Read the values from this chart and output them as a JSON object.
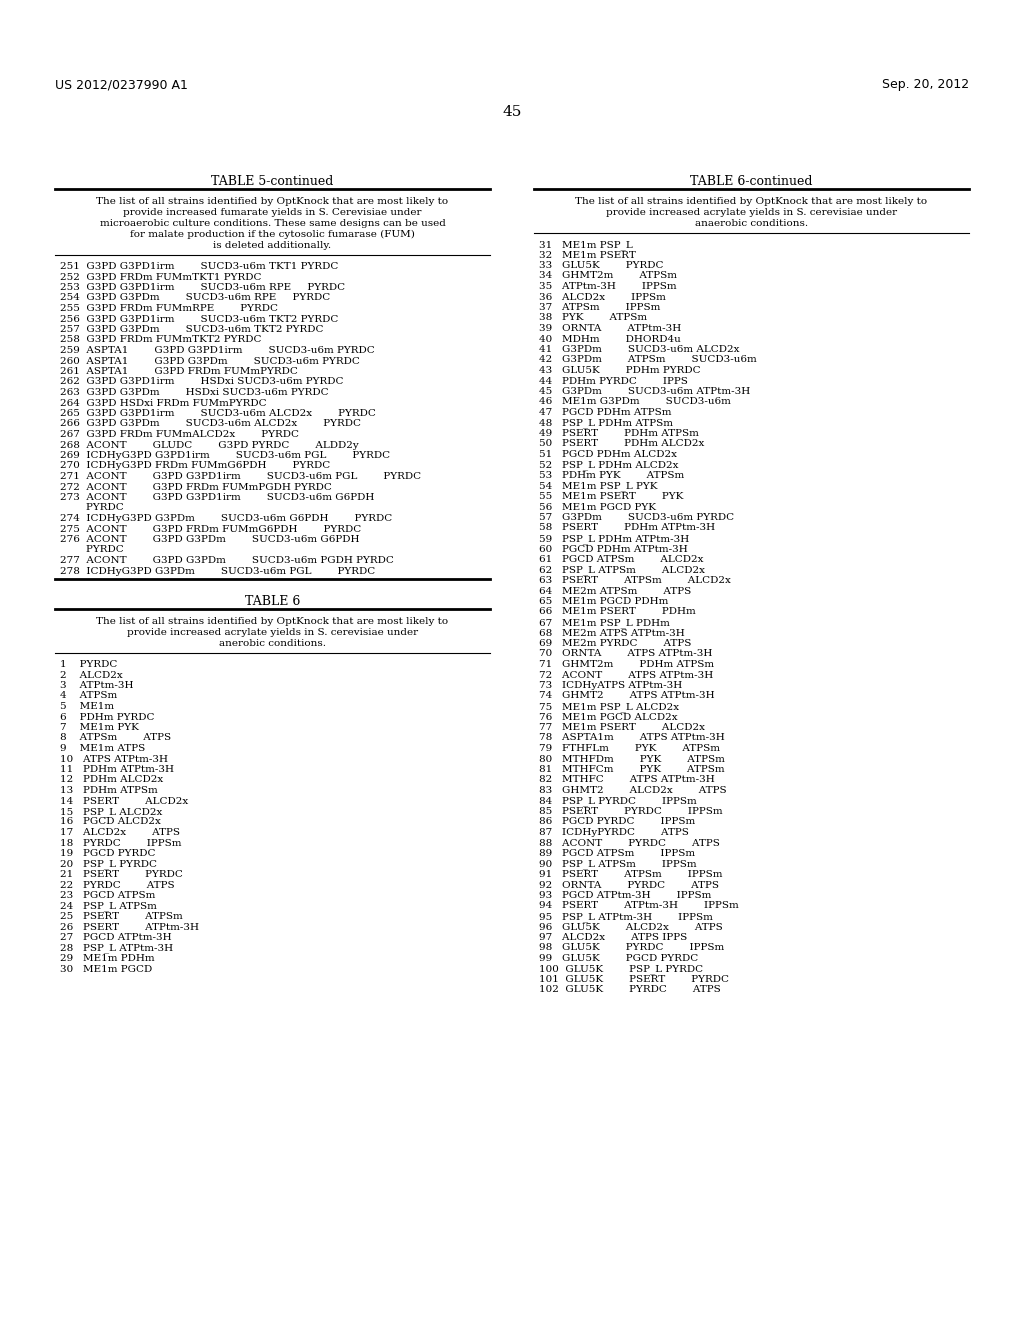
{
  "header_left": "US 2012/0237990 A1",
  "header_right": "Sep. 20, 2012",
  "page_number": "45",
  "table5_continued_title": "TABLE 5-continued",
  "table5_description": "The list of all strains identified by OptKnock that are most likely to\nprovide increased fumarate yields in S. Cerevisiae under\nmicroaerobic culture conditions. These same designs can be used\nfor malate production if the cytosolic fumarase (FUM)\nis deleted additionally.",
  "table5_rows": [
    "251  G3PD G3PD1irm        SUCD3-u6m TKT1 PYRDC",
    "252  G3PD FRDm FUMmTKT1 PYRDC",
    "253  G3PD G3PD1irm        SUCD3-u6m RPE     PYRDC",
    "254  G3PD G3PDm        SUCD3-u6m RPE     PYRDC",
    "255  G3PD FRDm FUMmRPE        PYRDC",
    "256  G3PD G3PD1irm        SUCD3-u6m TKT2 PYRDC",
    "257  G3PD G3PDm        SUCD3-u6m TKT2 PYRDC",
    "258  G3PD FRDm FUMmTKT2 PYRDC",
    "259  ASPTA1        G3PD G3PD1irm        SUCD3-u6m PYRDC",
    "260  ASPTA1        G3PD G3PDm        SUCD3-u6m PYRDC",
    "261  ASPTA1        G3PD FRDm FUMmPYRDC",
    "262  G3PD G3PD1irm        HSDxi SUCD3-u6m PYRDC",
    "263  G3PD G3PDm        HSDxi SUCD3-u6m PYRDC",
    "264  G3PD HSDxi FRDm FUMmPYRDC",
    "265  G3PD G3PD1irm        SUCD3-u6m ALCD2x        PYRDC",
    "266  G3PD G3PDm        SUCD3-u6m ALCD2x        PYRDC",
    "267  G3PD FRDm FUMmALCD2x        PYRDC",
    "268  ACONT        GLUDC        G3PD PYRDC        ALDD2y",
    "269  ICDHyG3PD G3PD1irm        SUCD3-u6m PGL        PYRDC",
    "270  ICDHyG3PD FRDm FUMmG6PDH        PYRDC",
    "271  ACONT        G3PD G3PD1irm        SUCD3-u6m PGL        PYRDC",
    "272  ACONT        G3PD FRDm FUMmPGDH PYRDC",
    "273  ACONT        G3PD G3PD1irm        SUCD3-u6m G6PDH",
    "        PYRDC",
    "274  ICDHyG3PD G3PDm        SUCD3-u6m G6PDH        PYRDC",
    "275  ACONT        G3PD FRDm FUMmG6PDH        PYRDC",
    "276  ACONT        G3PD G3PDm        SUCD3-u6m G6PDH",
    "        PYRDC",
    "277  ACONT        G3PD G3PDm        SUCD3-u6m PGDH PYRDC",
    "278  ICDHyG3PD G3PDm        SUCD3-u6m PGL        PYRDC"
  ],
  "table6_title": "TABLE 6",
  "table6_description": "The list of all strains identified by OptKnock that are most likely to\nprovide increased acrylate yields in S. cerevisiae under\nanerobic conditions.",
  "table6_rows_left": [
    "1    PYRDC",
    "2    ALCD2x",
    "3    ATPtm-3H",
    "4    ATPSm",
    "5    ME1m",
    "6    PDHm PYRDC",
    "7    ME1m PYK",
    "8    ATPSm        ATPS",
    "9    ME1m ATPS",
    "10   ATPS ATPtm-3H",
    "11   PDHm ATPtm-3H",
    "12   PDHm ALCD2x",
    "13   PDHm ATPSm",
    "14   PSERT        ALCD2x",
    "15   PSP_L ALCD2x",
    "16   PGCD ALCD2x",
    "17   ALCD2x        ATPS",
    "18   PYRDC        IPPSm",
    "19   PGCD PYRDC",
    "20   PSP_L PYRDC",
    "21   PSERT        PYRDC",
    "22   PYRDC        ATPS",
    "23   PGCD ATPSm",
    "24   PSP_L ATPSm",
    "25   PSERT        ATPSm",
    "26   PSERT        ATPtm-3H",
    "27   PGCD ATPtm-3H",
    "28   PSP_L ATPtm-3H",
    "29   ME1m PDHm",
    "30   ME1m PGCD"
  ],
  "table6_continued_title": "TABLE 6-continued",
  "table6_continued_description": "The list of all strains identified by OptKnock that are most likely to\nprovide increased acrylate yields in S. cerevisiae under\nanaerobic conditions.",
  "table6_rows_right": [
    "31   ME1m PSP_L",
    "32   ME1m PSERT",
    "33   GLU5K        PYRDC",
    "34   GHMT2m        ATPSm",
    "35   ATPtm-3H        IPPSm",
    "36   ALCD2x        IPPSm",
    "37   ATPSm        IPPSm",
    "38   PYK        ATPSm",
    "39   ORNTA        ATPtm-3H",
    "40   MDHm        DHORD4u",
    "41   G3PDm        SUCD3-u6m ALCD2x",
    "42   G3PDm        ATPSm        SUCD3-u6m",
    "43   GLU5K        PDHm PYRDC",
    "44   PDHm PYRDC        IPPS",
    "45   G3PDm        SUCD3-u6m ATPtm-3H",
    "46   ME1m G3PDm        SUCD3-u6m",
    "47   PGCD PDHm ATPSm",
    "48   PSP_L PDHm ATPSm",
    "49   PSERT        PDHm ATPSm",
    "50   PSERT        PDHm ALCD2x",
    "51   PGCD PDHm ALCD2x",
    "52   PSP_L PDHm ALCD2x",
    "53   PDHm PYK        ATPSm",
    "54   ME1m PSP_L PYK",
    "55   ME1m PSERT        PYK",
    "56   ME1m PGCD PYK",
    "57   G3PDm        SUCD3-u6m PYRDC",
    "58   PSERT        PDHm ATPtm-3H",
    "59   PSP_L PDHm ATPtm-3H",
    "60   PGCD PDHm ATPtm-3H",
    "61   PGCD ATPSm        ALCD2x",
    "62   PSP_L ATPSm        ALCD2x",
    "63   PSERT        ATPSm        ALCD2x",
    "64   ME2m ATPSm        ATPS",
    "65   ME1m PGCD PDHm",
    "66   ME1m PSERT        PDHm",
    "67   ME1m PSP_L PDHm",
    "68   ME2m ATPS ATPtm-3H",
    "69   ME2m PYRDC        ATPS",
    "70   ORNTA        ATPS ATPtm-3H",
    "71   GHMT2m        PDHm ATPSm",
    "72   ACONT        ATPS ATPtm-3H",
    "73   ICDHyATPS ATPtm-3H",
    "74   GHMT2        ATPS ATPtm-3H",
    "75   ME1m PSP_L ALCD2x",
    "76   ME1m PGCD ALCD2x",
    "77   ME1m PSERT        ALCD2x",
    "78   ASPTA1m        ATPS ATPtm-3H",
    "79   FTHFLm        PYK        ATPSm",
    "80   MTHFDm        PYK        ATPSm",
    "81   MTHFCm        PYK        ATPSm",
    "82   MTHFC        ATPS ATPtm-3H",
    "83   GHMT2        ALCD2x        ATPS",
    "84   PSP_L PYRDC        IPPSm",
    "85   PSERT        PYRDC        IPPSm",
    "86   PGCD PYRDC        IPPSm",
    "87   ICDHyPYRDC        ATPS",
    "88   ACONT        PYRDC        ATPS",
    "89   PGCD ATPSm        IPPSm",
    "90   PSP_L ATPSm        IPPSm",
    "91   PSERT        ATPSm        IPPSm",
    "92   ORNTA        PYRDC        ATPS",
    "93   PGCD ATPtm-3H        IPPSm",
    "94   PSERT        ATPtm-3H        IPPSm",
    "95   PSP_L ATPtm-3H        IPPSm",
    "96   GLU5K        ALCD2x        ATPS",
    "97   ALCD2x        ATPS IPPS",
    "98   GLU5K        PYRDC        IPPSm",
    "99   GLU5K        PGCD PYRDC",
    "100  GLU5K        PSP_L PYRDC",
    "101  GLU5K        PSERT        PYRDC",
    "102  GLU5K        PYRDC        ATPS"
  ]
}
